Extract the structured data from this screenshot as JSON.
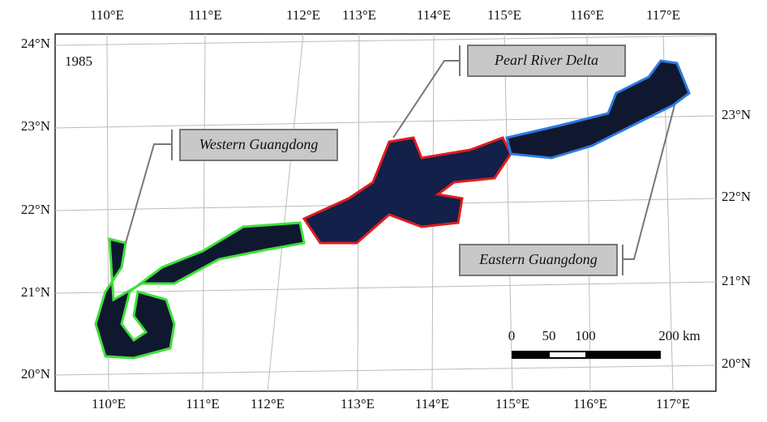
{
  "map": {
    "year": "1985",
    "top_ticks": [
      "110°E",
      "111°E",
      "112°E",
      "113°E",
      "114°E",
      "115°E",
      "116°E",
      "117°E"
    ],
    "bottom_ticks": [
      "110°E",
      "111°E",
      "112°E",
      "113°E",
      "114°E",
      "115°E",
      "116°E",
      "117°E"
    ],
    "left_ticks": [
      "24°N",
      "23°N",
      "22°N",
      "21°N",
      "20°N"
    ],
    "right_ticks": [
      "23°N",
      "22°N",
      "21°N",
      "20°N"
    ],
    "regions": [
      "Western Guangdong",
      "Pearl River Delta",
      "Eastern Guangdong"
    ],
    "scale_labels": [
      "0",
      "50",
      "100",
      "200 km"
    ]
  }
}
